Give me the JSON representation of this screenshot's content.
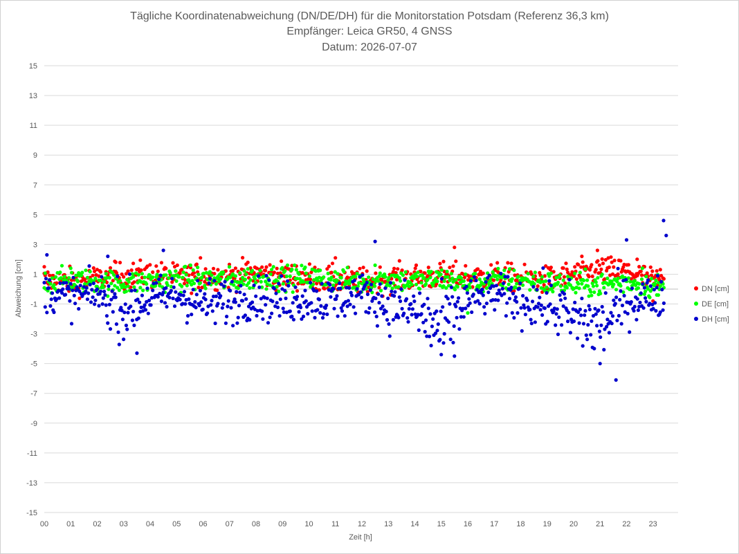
{
  "chart_data": {
    "type": "scatter",
    "title_lines": [
      "Tägliche Koordinatenabweichung (DN/DE/DH) für die Monitorstation Potsdam (Referenz 36,3 km)",
      "Empfänger: Leica GR50, 4 GNSS",
      "Datum: 2026-07-07"
    ],
    "xlabel": "Zeit [h]",
    "ylabel": "Abweichung [cm]",
    "xlim": [
      0,
      24
    ],
    "ylim": [
      -15,
      15
    ],
    "x_ticks": [
      0,
      1,
      2,
      3,
      4,
      5,
      6,
      7,
      8,
      9,
      10,
      11,
      12,
      13,
      14,
      15,
      16,
      17,
      18,
      19,
      20,
      21,
      22,
      23
    ],
    "x_tick_labels": [
      "00",
      "01",
      "02",
      "03",
      "04",
      "05",
      "06",
      "07",
      "08",
      "09",
      "10",
      "11",
      "12",
      "13",
      "14",
      "15",
      "16",
      "17",
      "18",
      "19",
      "20",
      "21",
      "22",
      "23"
    ],
    "y_ticks": [
      15,
      13,
      11,
      9,
      7,
      5,
      3,
      1,
      -1,
      -3,
      -5,
      -7,
      -9,
      -11,
      -13,
      -15
    ],
    "grid": "horizontal",
    "legend_position": "right",
    "colors": {
      "DN": "#ff0000",
      "DE": "#00ff00",
      "DH": "#0000cc"
    },
    "sample_interval_h": 0.0333,
    "series": [
      {
        "name": "DN [cm]",
        "color": "#ff0000",
        "hourly_mean": [
          0.6,
          0.5,
          0.7,
          0.9,
          1.0,
          0.8,
          0.9,
          0.9,
          1.1,
          0.9,
          0.8,
          0.6,
          0.5,
          0.7,
          0.8,
          0.9,
          0.8,
          0.9,
          0.7,
          0.6,
          1.0,
          1.3,
          1.2,
          0.6
        ],
        "notable_points": [
          [
            0.0,
            1.5
          ],
          [
            2.7,
            1.8
          ],
          [
            5.9,
            2.1
          ],
          [
            11.0,
            2.1
          ],
          [
            15.5,
            2.8
          ],
          [
            20.9,
            2.6
          ],
          [
            22.4,
            2.0
          ],
          [
            23.0,
            -0.8
          ]
        ],
        "range": [
          -0.8,
          2.8
        ]
      },
      {
        "name": "DE [cm]",
        "color": "#00ff00",
        "hourly_mean": [
          0.5,
          0.6,
          0.5,
          0.4,
          0.5,
          0.7,
          0.7,
          0.6,
          0.8,
          0.8,
          0.8,
          0.6,
          0.5,
          0.7,
          0.5,
          0.7,
          0.3,
          0.6,
          0.6,
          0.4,
          0.3,
          0.3,
          0.5,
          0.2
        ],
        "notable_points": [
          [
            1.0,
            1.4
          ],
          [
            12.5,
            1.6
          ],
          [
            16.0,
            -1.6
          ],
          [
            22.6,
            1.4
          ],
          [
            23.2,
            -0.4
          ]
        ],
        "range": [
          -1.6,
          1.6
        ]
      },
      {
        "name": "DH [cm]",
        "color": "#0000cc",
        "hourly_mean": [
          -0.2,
          -0.5,
          -0.3,
          -1.5,
          -0.6,
          -0.4,
          -1.0,
          -0.8,
          -0.5,
          -0.8,
          -0.6,
          -0.8,
          -0.2,
          -1.0,
          -1.5,
          -2.9,
          -0.7,
          -0.3,
          -0.8,
          -1.0,
          -2.0,
          -2.5,
          -0.8,
          -0.5
        ],
        "notable_points": [
          [
            0.1,
            2.3
          ],
          [
            2.4,
            2.2
          ],
          [
            3.5,
            -4.3
          ],
          [
            4.5,
            2.6
          ],
          [
            12.5,
            3.2
          ],
          [
            15.0,
            -4.4
          ],
          [
            15.5,
            -4.5
          ],
          [
            21.0,
            -5.0
          ],
          [
            21.6,
            -6.1
          ],
          [
            22.0,
            3.3
          ],
          [
            23.4,
            4.6
          ],
          [
            23.5,
            3.6
          ]
        ],
        "range": [
          -6.1,
          4.6
        ]
      }
    ]
  }
}
